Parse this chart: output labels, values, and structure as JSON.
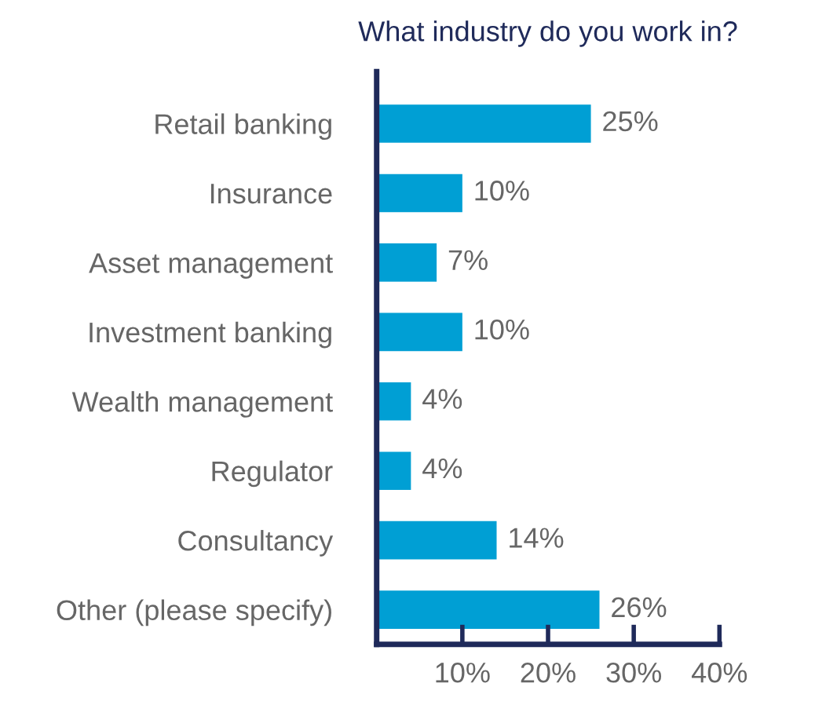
{
  "chart_data": {
    "type": "bar",
    "orientation": "horizontal",
    "title": "What industry do you work in?",
    "categories": [
      "Retail banking",
      "Insurance",
      "Asset management",
      "Investment banking",
      "Wealth management",
      "Regulator",
      "Consultancy",
      "Other (please specify)"
    ],
    "values": [
      25,
      10,
      7,
      10,
      4,
      4,
      14,
      26
    ],
    "value_labels": [
      "25%",
      "10%",
      "7%",
      "10%",
      "4%",
      "4%",
      "14%",
      "26%"
    ],
    "color": "#009fd4",
    "xlim": [
      0,
      40
    ],
    "xticks": [
      {
        "value": 10,
        "label": "10%"
      },
      {
        "value": 20,
        "label": "20%"
      },
      {
        "value": 30,
        "label": "30%"
      },
      {
        "value": 40,
        "label": "40%"
      }
    ],
    "grid": false,
    "legend": false
  }
}
